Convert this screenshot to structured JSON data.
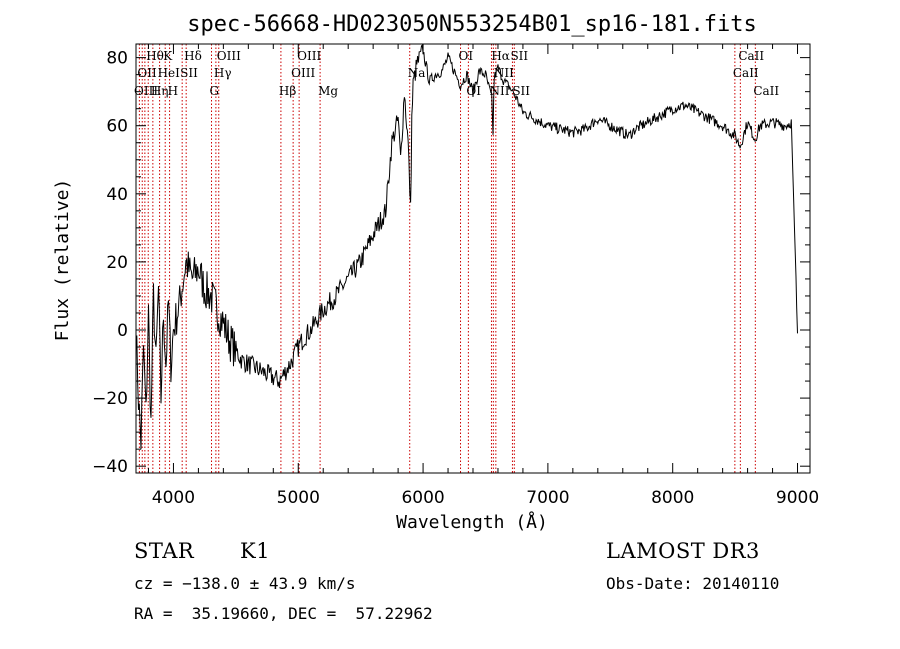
{
  "chart_data": {
    "type": "line",
    "title": "spec-56668-HD023050N553254B01_sp16-181.fits",
    "xlabel": "Wavelength (Å)",
    "ylabel": "Flux (relative)",
    "xlim": [
      3700,
      9100
    ],
    "ylim": [
      -42,
      84
    ],
    "xticks": [
      4000,
      5000,
      6000,
      7000,
      8000,
      9000
    ],
    "yticks": [
      -40,
      -20,
      0,
      20,
      40,
      60,
      80
    ],
    "grid": false,
    "series": [
      {
        "x": [
          3700,
          3720,
          3740,
          3760,
          3780,
          3800,
          3820,
          3840,
          3860,
          3880,
          3900,
          3920,
          3940,
          3960,
          3980,
          4000,
          4050,
          4100,
          4150,
          4200,
          4250,
          4300,
          4350,
          4400,
          4450,
          4500,
          4550,
          4600,
          4650,
          4700,
          4750,
          4800,
          4850,
          4900,
          4950,
          5000,
          5050,
          5100,
          5150,
          5200,
          5300,
          5400,
          5500,
          5600,
          5700,
          5750,
          5800,
          5820,
          5850,
          5880,
          5900,
          5910,
          5920,
          5950,
          6000,
          6050,
          6100,
          6150,
          6200,
          6250,
          6300,
          6350,
          6400,
          6450,
          6500,
          6550,
          6560,
          6570,
          6600,
          6650,
          6700,
          6750,
          6800,
          6900,
          7000,
          7100,
          7200,
          7300,
          7400,
          7500,
          7600,
          7650,
          7700,
          7800,
          7900,
          8000,
          8100,
          8200,
          8300,
          8400,
          8500,
          8540,
          8600,
          8660,
          8700,
          8800,
          8900,
          8950,
          9000
        ],
        "y": [
          0,
          -20,
          -33,
          -5,
          -25,
          5,
          -28,
          10,
          -10,
          12,
          -20,
          5,
          -10,
          8,
          -10,
          0,
          8,
          20,
          15,
          18,
          12,
          10,
          6,
          2,
          -3,
          -6,
          -9,
          -10,
          -11,
          -12,
          -13,
          -14,
          -15,
          -12,
          -9,
          -5,
          -2,
          0,
          3,
          6,
          10,
          15,
          20,
          28,
          35,
          55,
          62,
          50,
          70,
          55,
          35,
          62,
          72,
          78,
          82,
          73,
          75,
          76,
          80,
          76,
          72,
          75,
          70,
          76,
          75,
          68,
          58,
          74,
          77,
          73,
          71,
          68,
          64,
          62,
          60,
          59,
          58,
          59,
          62,
          60,
          58,
          57,
          59,
          61,
          63,
          65,
          66,
          64,
          62,
          60,
          57,
          54,
          61,
          56,
          60,
          61,
          60,
          61,
          -1
        ]
      }
    ],
    "line_labels": [
      {
        "label": "Hθ",
        "x": 3798,
        "row": 0
      },
      {
        "label": "K",
        "x": 3934,
        "row": 0
      },
      {
        "label": "Hδ",
        "x": 4102,
        "row": 0
      },
      {
        "label": "OII",
        "x": 3727,
        "row": 1
      },
      {
        "label": "HeI",
        "x": 3889,
        "row": 1
      },
      {
        "label": "SII",
        "x": 4070,
        "row": 1
      },
      {
        "label": "OIII",
        "x": 3700,
        "row": 2
      },
      {
        "label": "Hη",
        "x": 3835,
        "row": 2
      },
      {
        "label": "H",
        "x": 3969,
        "row": 2
      },
      {
        "label": "OIII",
        "x": 4363,
        "row": 0
      },
      {
        "label": "Hγ",
        "x": 4340,
        "row": 1
      },
      {
        "label": "G",
        "x": 4305,
        "row": 2
      },
      {
        "label": "Hβ",
        "x": 4861,
        "row": 2
      },
      {
        "label": "OIII",
        "x": 5007,
        "row": 0
      },
      {
        "label": "OIII",
        "x": 4959,
        "row": 1
      },
      {
        "label": "Mg",
        "x": 5175,
        "row": 2
      },
      {
        "label": "Na",
        "x": 5893,
        "row": 1
      },
      {
        "label": "OI",
        "x": 6300,
        "row": 0
      },
      {
        "label": "OI",
        "x": 6363,
        "row": 2
      },
      {
        "label": "Hα",
        "x": 6563,
        "row": 0
      },
      {
        "label": "SII",
        "x": 6716,
        "row": 0
      },
      {
        "label": "NII",
        "x": 6583,
        "row": 1
      },
      {
        "label": "NII",
        "x": 6548,
        "row": 2
      },
      {
        "label": "SII",
        "x": 6731,
        "row": 2
      },
      {
        "label": "CaII",
        "x": 8542,
        "row": 0
      },
      {
        "label": "CaII",
        "x": 8498,
        "row": 1
      },
      {
        "label": "CaII",
        "x": 8662,
        "row": 2
      }
    ],
    "marker_lines": [
      3727,
      3750,
      3771,
      3798,
      3835,
      3889,
      3934,
      3969,
      4070,
      4102,
      4305,
      4340,
      4363,
      4861,
      4959,
      5007,
      5175,
      5893,
      6300,
      6363,
      6548,
      6563,
      6583,
      6716,
      6731,
      8498,
      8542,
      8662
    ]
  },
  "info": {
    "class": "STAR",
    "subclass": "K1",
    "survey": "LAMOST DR3",
    "cz": "cz = −138.0 ± 43.9 km/s",
    "obs_date": "Obs-Date: 20140110",
    "coords": "RA =  35.19660, DEC =  57.22962"
  }
}
